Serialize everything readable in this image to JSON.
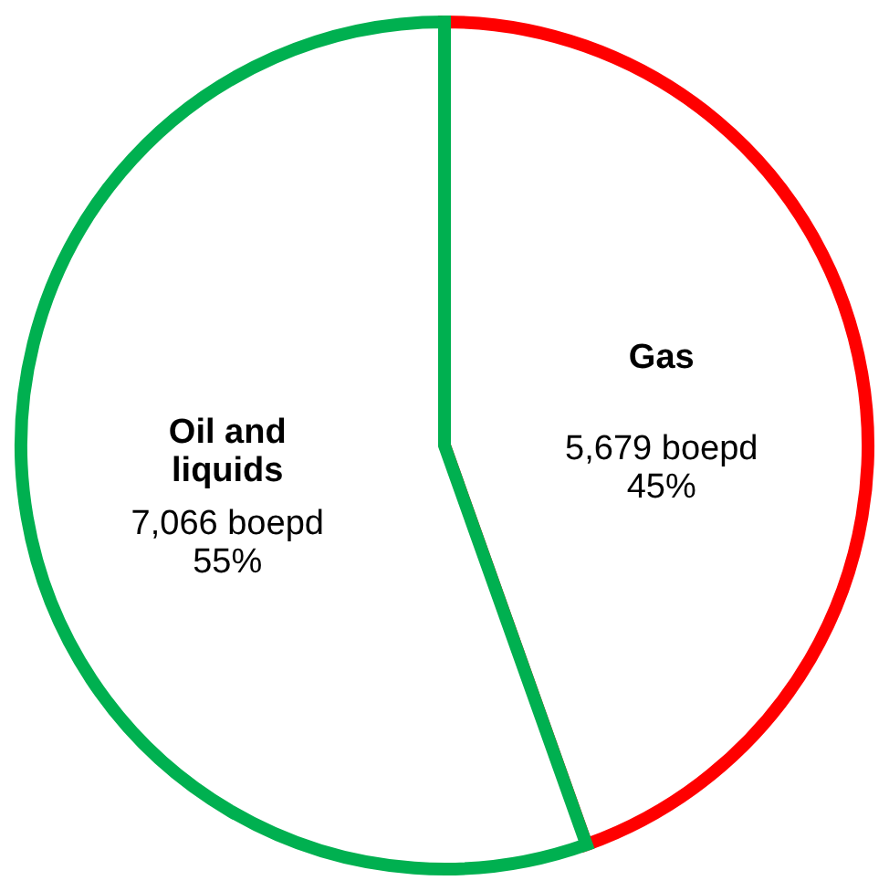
{
  "chart_data": {
    "type": "pie",
    "categories": [
      "Gas",
      "Oil and\nliquids"
    ],
    "values": [
      5679,
      7066
    ],
    "colors": [
      "#ff0000",
      "#00b050"
    ],
    "value_labels": [
      "5,679 boepd\n45%",
      "7,066 boepd\n55%"
    ],
    "legend": false
  }
}
